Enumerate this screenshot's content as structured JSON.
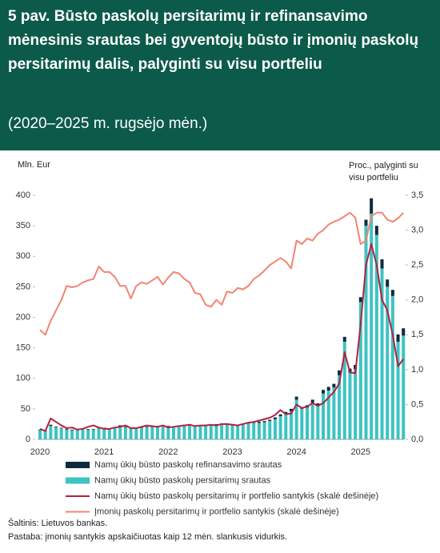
{
  "chart_data": {
    "type": "bar",
    "title": "5 pav. Būsto paskolų persitarimų ir refinansavimo mėnesinis srautas bei gyventojų būsto ir įmonių paskolų persitarimų dalis, palyginti su visu portfeliu",
    "subtitle": "(2020–2025 m. rugsėjo mėn.)",
    "y_label": "Mln. Eur",
    "y2_label": "Proc., palyginti su visu portfeliu",
    "categories": [
      "2020",
      null,
      null,
      null,
      null,
      null,
      null,
      null,
      null,
      null,
      null,
      null,
      "2021",
      null,
      null,
      null,
      null,
      null,
      null,
      null,
      null,
      null,
      null,
      null,
      "2022",
      null,
      null,
      null,
      null,
      null,
      null,
      null,
      null,
      null,
      null,
      null,
      "2023",
      null,
      null,
      null,
      null,
      null,
      null,
      null,
      null,
      null,
      null,
      null,
      "2024",
      null,
      null,
      null,
      null,
      null,
      null,
      null,
      null,
      null,
      null,
      null,
      "2025",
      null,
      null,
      null,
      null,
      null,
      null,
      null,
      null
    ],
    "series": [
      {
        "name": "Namų ūkių būsto paskolų refinansavimo srautas",
        "type": "bar",
        "color": "#0f2a3d",
        "values": [
          1,
          1,
          2,
          1,
          1,
          1,
          1,
          1,
          1,
          1,
          1,
          1,
          1,
          1,
          1,
          2,
          1,
          1,
          1,
          1,
          1,
          1,
          1,
          1,
          1,
          1,
          1,
          1,
          1,
          1,
          1,
          1,
          1,
          1,
          1,
          1,
          1,
          1,
          1,
          2,
          2,
          2,
          2,
          2,
          3,
          3,
          3,
          4,
          5,
          3,
          4,
          5,
          4,
          6,
          6,
          6,
          8,
          8,
          6,
          7,
          8,
          10,
          25,
          15,
          15,
          12,
          10,
          12,
          12
        ]
      },
      {
        "name": "Namų ūkių būsto paskolų persitarimų srautas",
        "type": "bar",
        "color": "#3dc3c3",
        "values": [
          15,
          13,
          22,
          20,
          18,
          16,
          15,
          16,
          17,
          16,
          16,
          18,
          18,
          17,
          19,
          21,
          20,
          18,
          18,
          19,
          20,
          20,
          21,
          22,
          21,
          20,
          22,
          23,
          24,
          22,
          22,
          23,
          23,
          24,
          25,
          25,
          24,
          23,
          25,
          26,
          27,
          27,
          28,
          30,
          33,
          38,
          42,
          46,
          65,
          50,
          52,
          60,
          55,
          75,
          80,
          85,
          105,
          160,
          110,
          115,
          225,
          350,
          370,
          335,
          280,
          250,
          235,
          160,
          170
        ]
      },
      {
        "name": "Namų ūkių būsto paskolų persitarimų ir portfelio santykis (skalė dešinėje)",
        "type": "line",
        "axis": "y2",
        "color": "#b3213f",
        "values": [
          0.15,
          0.12,
          0.3,
          0.25,
          0.2,
          0.16,
          0.17,
          0.14,
          0.15,
          0.18,
          0.2,
          0.17,
          0.15,
          0.15,
          0.17,
          0.18,
          0.2,
          0.16,
          0.16,
          0.18,
          0.2,
          0.19,
          0.18,
          0.2,
          0.17,
          0.18,
          0.19,
          0.2,
          0.21,
          0.19,
          0.2,
          0.2,
          0.21,
          0.2,
          0.22,
          0.22,
          0.21,
          0.2,
          0.22,
          0.24,
          0.25,
          0.27,
          0.29,
          0.31,
          0.35,
          0.42,
          0.36,
          0.37,
          0.5,
          0.45,
          0.47,
          0.52,
          0.48,
          0.52,
          0.6,
          0.68,
          0.8,
          1.25,
          0.96,
          0.95,
          1.65,
          2.5,
          2.8,
          2.5,
          2.0,
          1.85,
          1.5,
          1.05,
          1.15
        ]
      },
      {
        "name": "Įmonių paskolų persitarimų ir portfelio santykis (skalė dešinėje)",
        "type": "line",
        "axis": "y2",
        "color": "#f28474",
        "values": [
          1.57,
          1.5,
          1.7,
          1.85,
          2.0,
          2.2,
          2.18,
          2.2,
          2.25,
          2.28,
          2.3,
          2.48,
          2.4,
          2.4,
          2.33,
          2.2,
          2.2,
          2.02,
          2.2,
          2.25,
          2.23,
          2.28,
          2.33,
          2.22,
          2.32,
          2.4,
          2.38,
          2.3,
          2.25,
          2.1,
          2.08,
          1.93,
          1.9,
          2.0,
          1.93,
          2.12,
          2.1,
          2.17,
          2.15,
          2.2,
          2.3,
          2.35,
          2.42,
          2.5,
          2.55,
          2.6,
          2.55,
          2.45,
          2.85,
          2.8,
          2.88,
          2.85,
          2.95,
          3.0,
          3.08,
          3.12,
          3.15,
          3.2,
          3.25,
          3.18,
          2.8,
          2.85,
          3.2,
          3.25,
          3.25,
          3.15,
          3.12,
          3.17,
          3.25
        ]
      }
    ],
    "ylim": [
      0,
      400
    ],
    "yticks": [
      0,
      50,
      100,
      150,
      200,
      250,
      300,
      350,
      400
    ],
    "y2lim": [
      0,
      3.5
    ],
    "y2ticks": [
      {
        "value": 0,
        "label": "0,0"
      },
      {
        "value": 0.5,
        "label": "0,5"
      },
      {
        "value": 1,
        "label": "1,0"
      },
      {
        "value": 1.5,
        "label": "1,5"
      },
      {
        "value": 2,
        "label": "2,0"
      },
      {
        "value": 2.5,
        "label": "2,5"
      },
      {
        "value": 3,
        "label": "3,0"
      },
      {
        "value": 3.5,
        "label": "3,5"
      }
    ],
    "grid": false,
    "legend": "bottom",
    "source": "Šaltinis: Lietuvos bankas.",
    "note": "Pastaba: įmonių santykis apskaičiuotas kaip 12 mėn. slankusis vidurkis."
  }
}
